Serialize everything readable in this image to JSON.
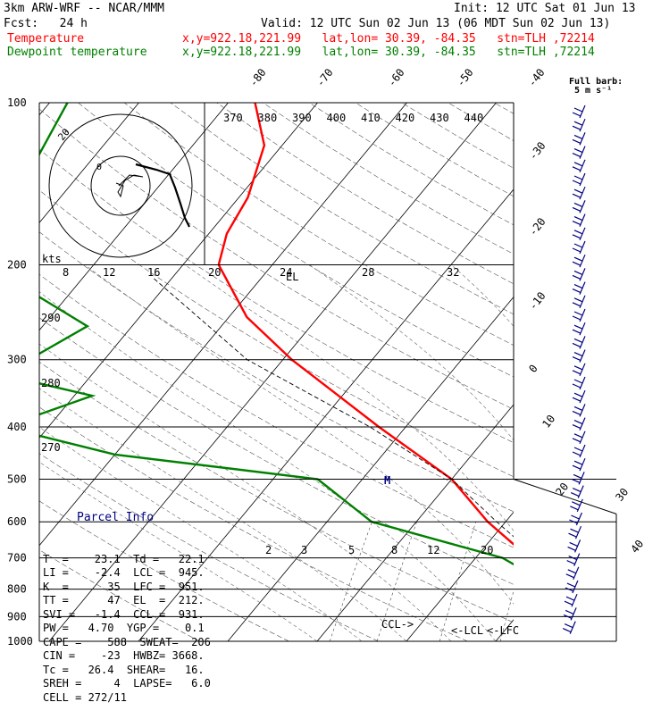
{
  "header": {
    "model": "3km ARW-WRF -- NCAR/MMM",
    "init": "Init: 12 UTC Sat 01 Jun 13",
    "fcst": "Fcst:   24 h",
    "valid": "Valid: 12 UTC Sun 02 Jun 13 (06 MDT Sun 02 Jun 13)"
  },
  "legend": [
    {
      "label": "Temperature",
      "info": "x,y=922.18,221.99   lat,lon= 30.39, -84.35   stn=TLH ,72214",
      "color": "#ff0000"
    },
    {
      "label": "Dewpoint temperature",
      "info": "x,y=922.18,221.99   lat,lon= 30.39, -84.35   stn=TLH ,72214",
      "color": "#008000"
    }
  ],
  "barb_note": {
    "title": "Full barb:",
    "value": "5 m s⁻¹"
  },
  "parcel_info": {
    "title": "Parcel Info",
    "rows": [
      "T  =    23.1  Td =   22.1",
      "LI =    -2.4  LCL =  945.",
      "K  =      35  LFC =  951.",
      "TT =      47  EL  =  212.",
      "SVI =   -1.4  CCL =  931.",
      "PW =   4.70  YGP =    0.1",
      "CAPE =    588  SWEAT=  206",
      "CIN =    -23  HWBZ= 3668.",
      "Tc =   26.4  SHEAR=   16.",
      "SREH =     4  LAPSE=   6.0",
      "CELL = 272/11"
    ]
  },
  "hodograph": {
    "unit": "kts",
    "rings": [
      "8",
      "12",
      "16",
      "20",
      "24",
      "28",
      "32"
    ],
    "ring_label": "20"
  },
  "chart_data": {
    "type": "line",
    "title": "",
    "xlabel": "",
    "ylabel": "",
    "y_axis": {
      "scale": "log",
      "ylim": [
        1000,
        100
      ],
      "pressure_levels": [
        100,
        200,
        300,
        400,
        500,
        600,
        700,
        800,
        900,
        1000
      ]
    },
    "isotherm_labels": [
      "-80",
      "-70",
      "-60",
      "-50",
      "-40",
      "-30",
      "-20",
      "-10",
      "0",
      "10",
      "20",
      "30",
      "40"
    ],
    "theta_labels": [
      "370",
      "380",
      "390",
      "400",
      "410",
      "420",
      "430",
      "440"
    ],
    "theta_labels_left": [
      "290",
      "280",
      "270"
    ],
    "mixing_ratio_labels": [
      "2",
      "3",
      "5",
      "8",
      "12",
      "20"
    ],
    "annotations": [
      "EL",
      "LFC",
      "CCL",
      "LCL",
      "LFC",
      "M"
    ],
    "series": [
      {
        "name": "Temperature",
        "color": "#ff0000",
        "points": [
          [
            100,
            -67
          ],
          [
            120,
            -62
          ],
          [
            150,
            -59
          ],
          [
            175,
            -58
          ],
          [
            200,
            -56
          ],
          [
            250,
            -48
          ],
          [
            300,
            -39
          ],
          [
            400,
            -23
          ],
          [
            500,
            -10
          ],
          [
            600,
            -2
          ],
          [
            700,
            6
          ],
          [
            800,
            14
          ],
          [
            850,
            16
          ],
          [
            900,
            17
          ],
          [
            950,
            20
          ],
          [
            975,
            22
          ],
          [
            1000,
            23.1
          ]
        ]
      },
      {
        "name": "Dewpoint temperature",
        "color": "#008000",
        "points": [
          [
            100,
            -88
          ],
          [
            150,
            -85
          ],
          [
            175,
            -84
          ],
          [
            200,
            -82
          ],
          [
            260,
            -65
          ],
          [
            320,
            -70
          ],
          [
            350,
            -58
          ],
          [
            400,
            -65
          ],
          [
            450,
            -50
          ],
          [
            500,
            -25
          ],
          [
            600,
            -15
          ],
          [
            700,
            3
          ],
          [
            800,
            12
          ],
          [
            900,
            19
          ],
          [
            950,
            20
          ],
          [
            975,
            21
          ],
          [
            1000,
            22.1
          ]
        ]
      }
    ],
    "parcel_path": {
      "color": "#000000",
      "points": [
        [
          1000,
          23.1
        ],
        [
          950,
          20
        ],
        [
          900,
          17.5
        ],
        [
          800,
          13
        ],
        [
          700,
          7
        ],
        [
          600,
          -1
        ],
        [
          500,
          -10
        ],
        [
          400,
          -24
        ],
        [
          300,
          -44
        ],
        [
          212,
          -62
        ]
      ]
    }
  }
}
